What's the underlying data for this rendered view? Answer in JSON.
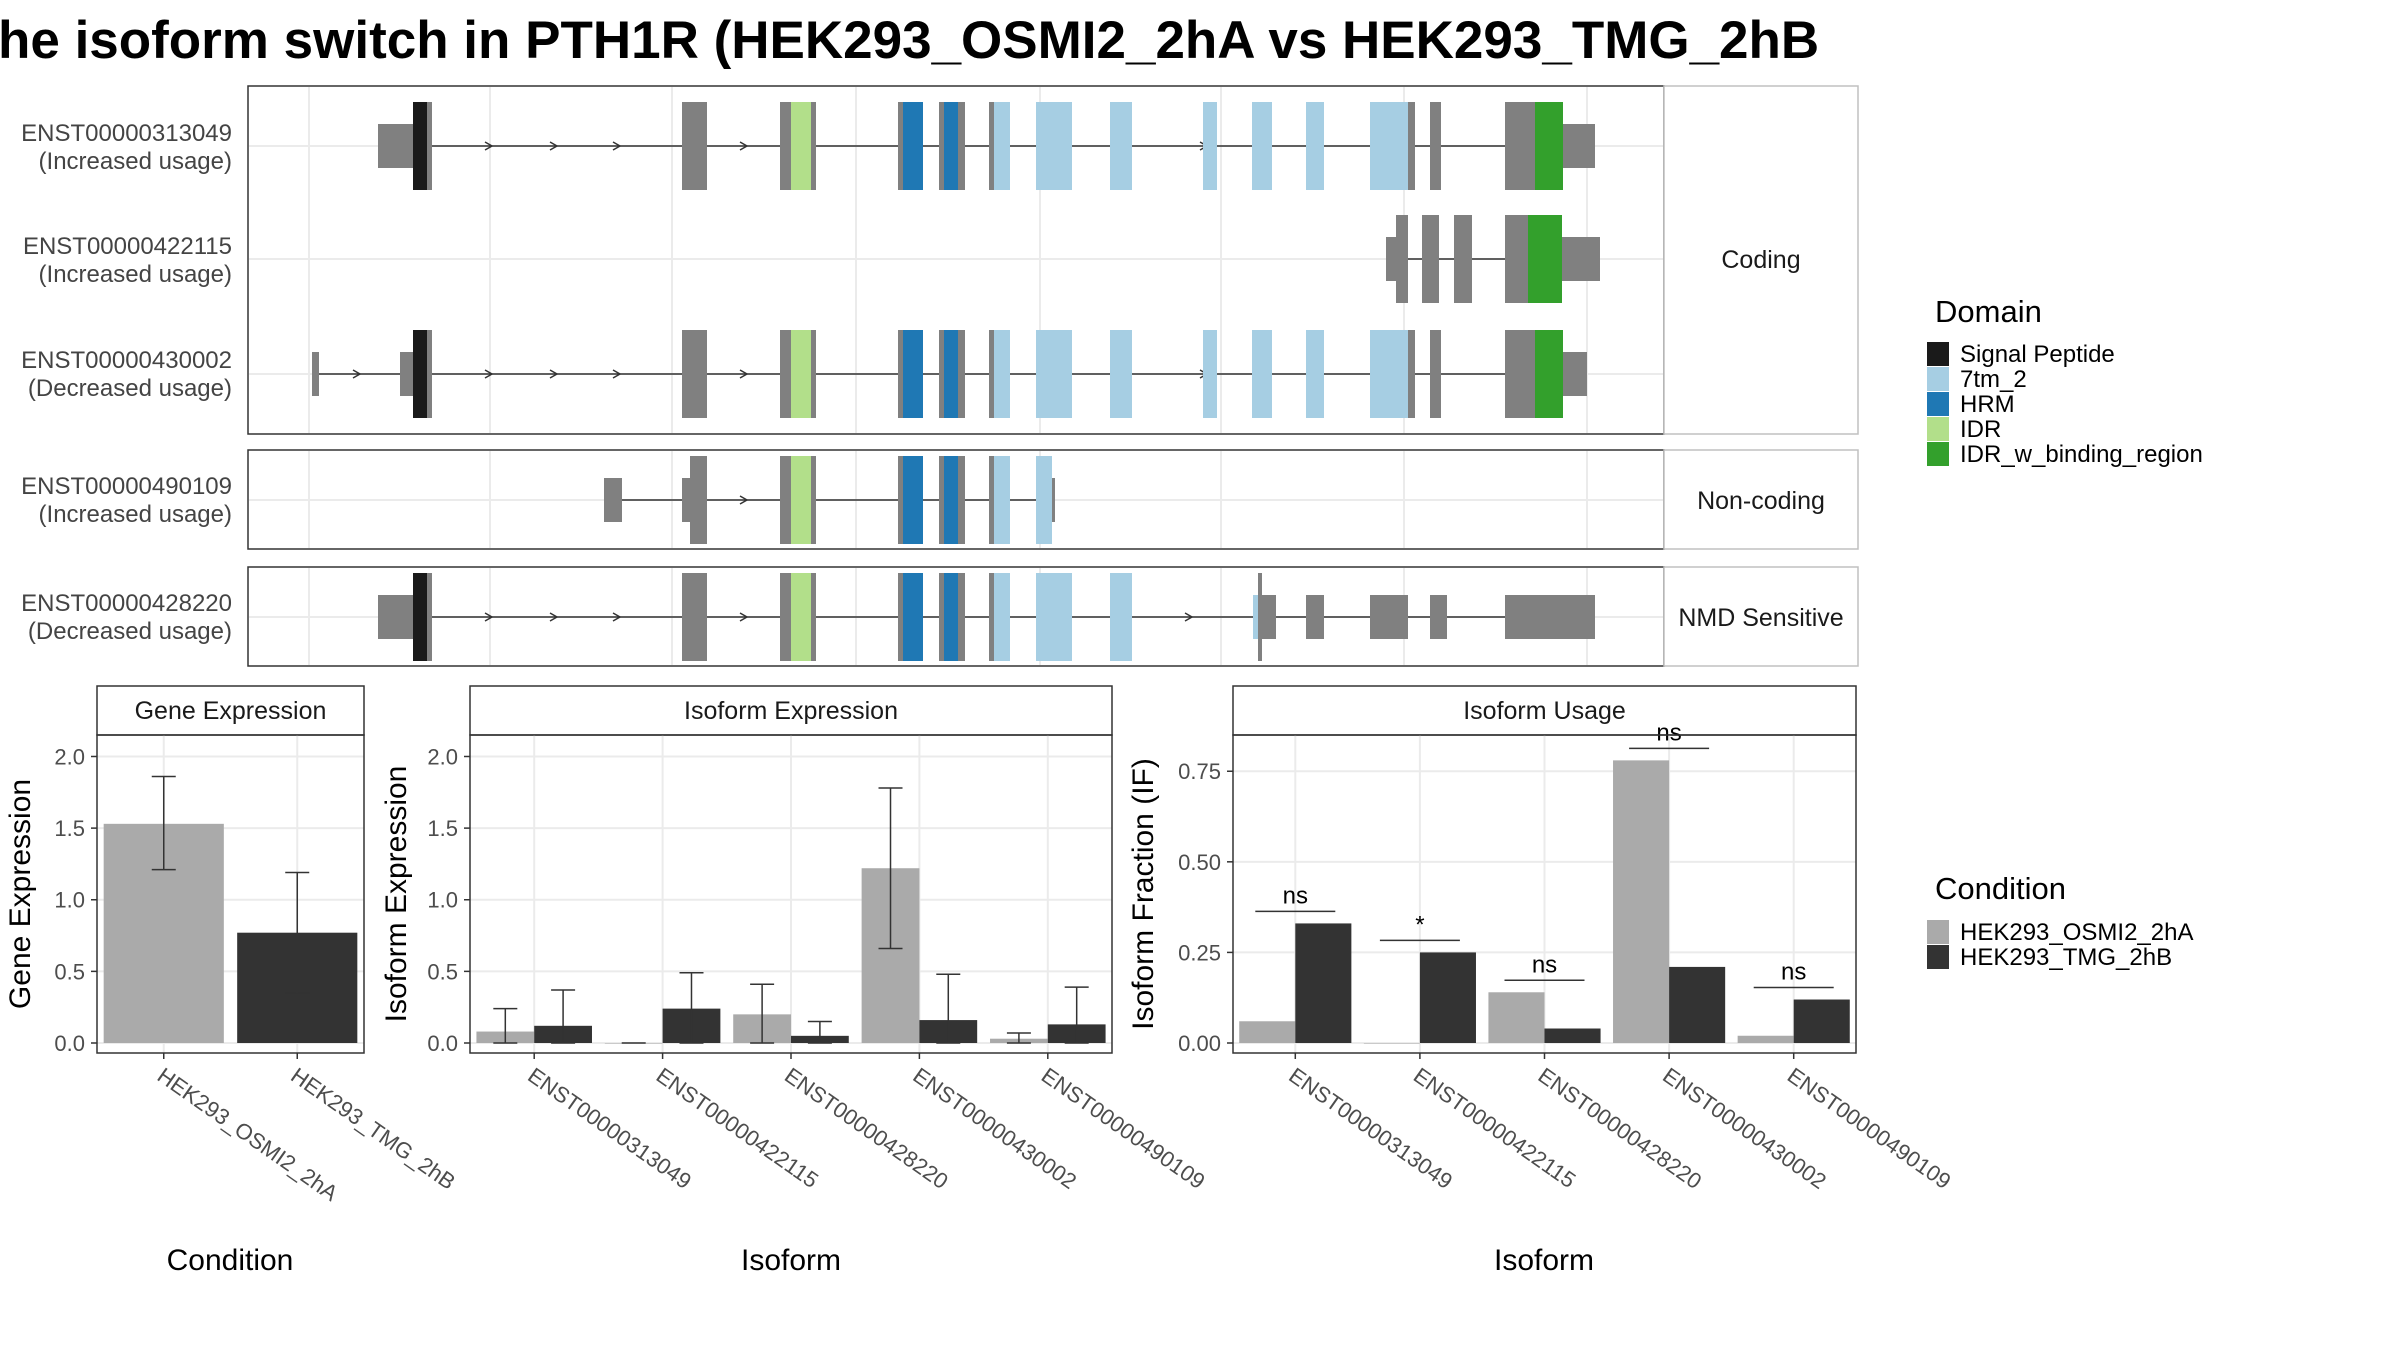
{
  "title": "he isoform switch in PTH1R (HEK293_OSMI2_2hA vs HEK293_TMG_2hB",
  "colors": {
    "Signal Peptide": "#1a1a1a",
    "7tm_2": "#a6cee3",
    "HRM": "#1f78b4",
    "IDR": "#b2df8a",
    "IDR_w_binding_region": "#33a02c",
    "none": "#808080",
    "HEK293_OSMI2_2hA": "#aaaaaa",
    "HEK293_TMG_2hB": "#333333"
  },
  "structure": {
    "panels": [
      {
        "label": "Coding",
        "transcripts": [
          {
            "id": "ENST00000313049",
            "usage": "(Increased usage)"
          },
          {
            "id": "ENST00000422115",
            "usage": "(Increased usage)"
          },
          {
            "id": "ENST00000430002",
            "usage": "(Decreased usage)"
          }
        ]
      },
      {
        "label": "Non-coding",
        "transcripts": [
          {
            "id": "ENST00000490109",
            "usage": "(Increased usage)"
          }
        ]
      },
      {
        "label": "NMD Sensitive",
        "transcripts": [
          {
            "id": "ENST00000428220",
            "usage": "(Decreased usage)"
          }
        ]
      }
    ]
  },
  "legend_domain": {
    "title": "Domain",
    "items": [
      "Signal Peptide",
      "7tm_2",
      "HRM",
      "IDR",
      "IDR_w_binding_region"
    ]
  },
  "legend_condition": {
    "title": "Condition",
    "items": [
      "HEK293_OSMI2_2hA",
      "HEK293_TMG_2hB"
    ]
  },
  "chart_data": [
    {
      "type": "bar",
      "title": "Gene Expression",
      "xlabel": "Condition",
      "ylabel": "Gene Expression",
      "ylim": [
        0,
        2.15
      ],
      "yticks": [
        "0.0",
        "0.5",
        "1.0",
        "1.5",
        "2.0"
      ],
      "categories": [
        "HEK293_OSMI2_2hA",
        "HEK293_TMG_2hB"
      ],
      "values": [
        1.53,
        0.77
      ],
      "error_low": [
        1.21,
        0.35
      ],
      "error_high": [
        1.86,
        1.19
      ]
    },
    {
      "type": "bar",
      "title": "Isoform Expression",
      "xlabel": "Isoform",
      "ylabel": "Isoform Expression",
      "ylim": [
        0,
        2.15
      ],
      "yticks": [
        "0.0",
        "0.5",
        "1.0",
        "1.5",
        "2.0"
      ],
      "categories": [
        "ENST00000313049",
        "ENST00000422115",
        "ENST00000428220",
        "ENST00000430002",
        "ENST00000490109"
      ],
      "series": [
        {
          "name": "HEK293_OSMI2_2hA",
          "values": [
            0.08,
            0.0,
            0.2,
            1.22,
            0.03
          ],
          "error_low": [
            0.0,
            0.0,
            0.0,
            0.66,
            0.0
          ],
          "error_high": [
            0.24,
            0.0,
            0.41,
            1.78,
            0.07
          ]
        },
        {
          "name": "HEK293_TMG_2hB",
          "values": [
            0.12,
            0.24,
            0.05,
            0.16,
            0.13
          ],
          "error_low": [
            0.0,
            0.0,
            0.0,
            0.0,
            0.0
          ],
          "error_high": [
            0.37,
            0.49,
            0.15,
            0.48,
            0.39
          ]
        }
      ]
    },
    {
      "type": "bar",
      "title": "Isoform Usage",
      "xlabel": "Isoform",
      "ylabel": "Isoform Fraction (IF)",
      "ylim": [
        0,
        0.85
      ],
      "yticks": [
        "0.00",
        "0.25",
        "0.50",
        "0.75"
      ],
      "categories": [
        "ENST00000313049",
        "ENST00000422115",
        "ENST00000428220",
        "ENST00000430002",
        "ENST00000490109"
      ],
      "series": [
        {
          "name": "HEK293_OSMI2_2hA",
          "values": [
            0.06,
            0.0,
            0.14,
            0.78,
            0.02
          ]
        },
        {
          "name": "HEK293_TMG_2hB",
          "values": [
            0.33,
            0.25,
            0.04,
            0.21,
            0.12
          ]
        }
      ],
      "significance": [
        "ns",
        "*",
        "ns",
        "ns",
        "ns"
      ]
    }
  ]
}
